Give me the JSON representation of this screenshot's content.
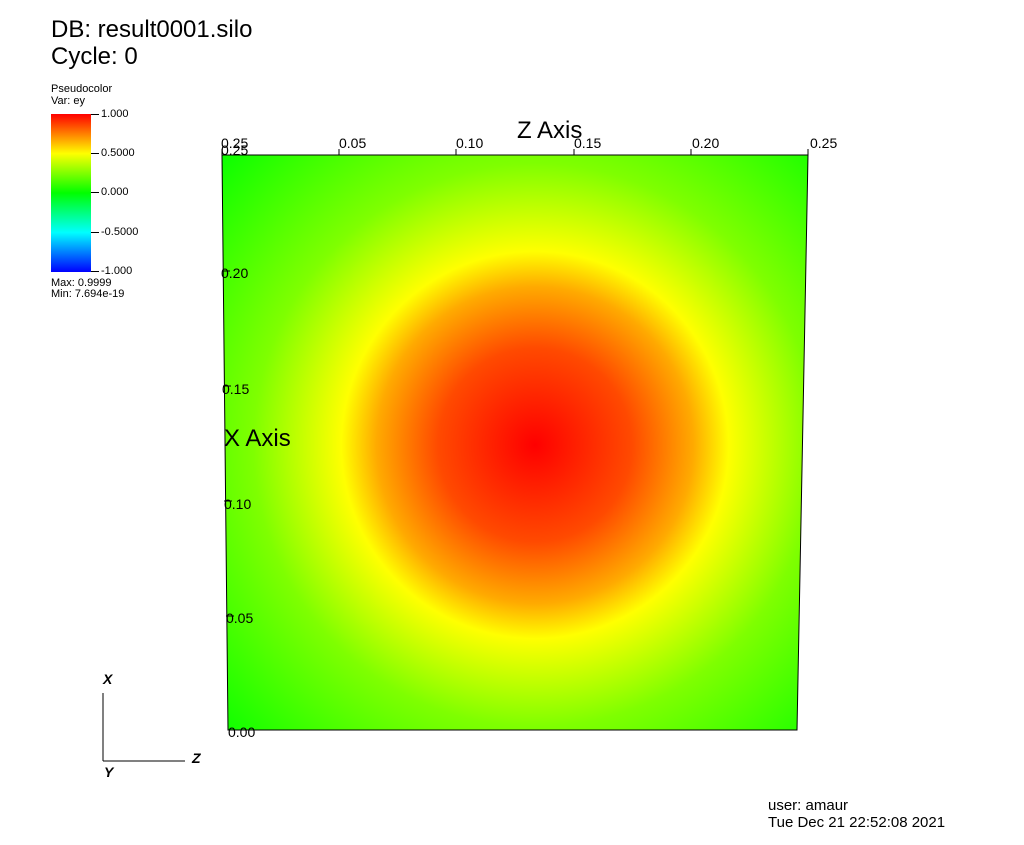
{
  "header": {
    "db_line": "DB: result0001.silo",
    "cycle_line": "Cycle: 0"
  },
  "legend": {
    "plot_type": "Pseudocolor",
    "var_line": "Var: ey",
    "ticks": [
      "1.000",
      "0.5000",
      "0.000",
      "-0.5000",
      "-1.000"
    ],
    "max_line": "Max: 0.9999",
    "min_line": "Min: 7.694e-19",
    "colors": [
      "#ff0000",
      "#ffff00",
      "#00ff00",
      "#00ffff",
      "#0000ff"
    ]
  },
  "plot": {
    "z_axis_title": "Z Axis",
    "x_axis_title": "X Axis",
    "z_ticks": [
      "0.05",
      "0.10",
      "0.15",
      "0.20",
      "0.25"
    ],
    "x_ticks": [
      "0.20",
      "0.15",
      "0.10",
      "0.05",
      "0.00"
    ],
    "corner_labels": [
      "0.25",
      "0.00"
    ]
  },
  "triad": {
    "x_label": "X",
    "y_label": "Y",
    "z_label": "Z"
  },
  "footer": {
    "user_line": "user: amaur",
    "date_line": "Tue Dec 21 22:52:08 2021"
  }
}
